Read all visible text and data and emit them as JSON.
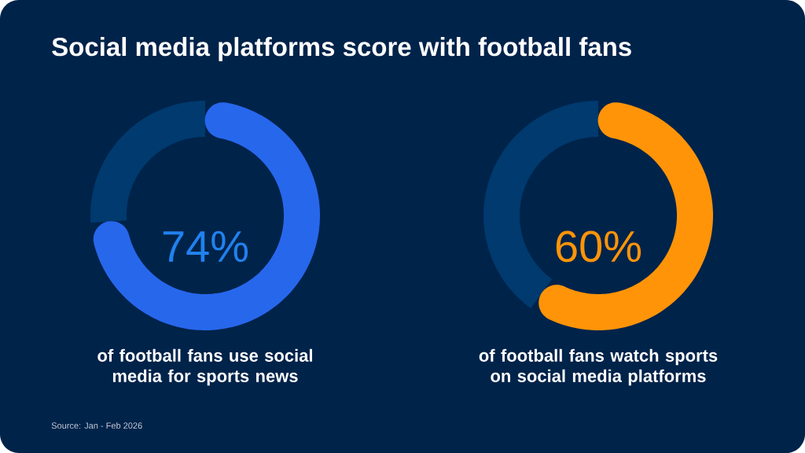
{
  "chart_data": [
    {
      "type": "donut",
      "title": "Social media platforms score with football fans",
      "categories": [
        null,
        null
      ],
      "values": [
        74,
        26
      ],
      "colors": [
        "#2767ec",
        "#003a6e"
      ],
      "value_labels": [
        "74%",
        null
      ],
      "xlabel": "of football fans use social media for sports news",
      "annotations": [
        "Source: Jan - Feb 2026"
      ]
    },
    {
      "type": "donut",
      "categories": [
        null,
        null
      ],
      "values": [
        60,
        40
      ],
      "colors": [
        "#ff9408",
        "#003a6e"
      ],
      "value_labels": [
        "60%",
        null
      ],
      "xlabel": "of football fans watch sports on social media platforms"
    }
  ]
}
